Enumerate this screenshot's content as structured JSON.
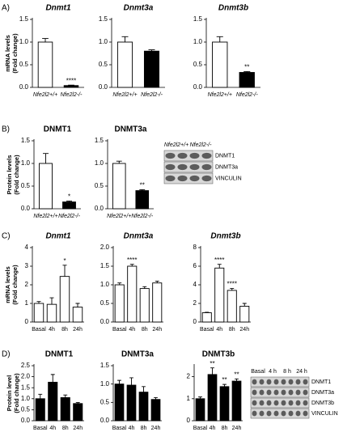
{
  "panel_labels": [
    "A)",
    "B)",
    "C)",
    "D)"
  ],
  "chart_data": [
    {
      "type": "bar",
      "title": "Dnmt1",
      "ylabel": [
        "mRNA levels",
        "(Fold change)"
      ],
      "categories": [
        "Nfe2l2+/+",
        "Nfe2l2-/-"
      ],
      "values": [
        1.0,
        0.04
      ],
      "errors": [
        0.08,
        0.01
      ],
      "significance": [
        null,
        "****"
      ],
      "colors": [
        "#ffffff",
        "#000000"
      ],
      "ylim": [
        0,
        1.5
      ],
      "yticks": [
        {
          "value": 0,
          "label": "0.0"
        },
        {
          "value": 0.5,
          "label": "0.5"
        },
        {
          "value": 1,
          "label": "1.0"
        },
        {
          "value": 1.5,
          "label": "1.5"
        }
      ]
    },
    {
      "type": "bar",
      "title": "Dnmt3a",
      "categories": [
        "Nfe2l2+/+",
        "Nfe2l2-/-"
      ],
      "values": [
        1.0,
        0.8
      ],
      "errors": [
        0.12,
        0.03
      ],
      "significance": [
        null,
        null
      ],
      "colors": [
        "#ffffff",
        "#000000"
      ],
      "ylim": [
        0,
        1.5
      ],
      "yticks": [
        {
          "value": 0,
          "label": "0.0"
        },
        {
          "value": 0.5,
          "label": "0.5"
        },
        {
          "value": 1,
          "label": "1.0"
        },
        {
          "value": 1.5,
          "label": "1.5"
        }
      ]
    },
    {
      "type": "bar",
      "title": "Dnmt3b",
      "categories": [
        "Nfe2l2+/+",
        "Nfe2l2-/-"
      ],
      "values": [
        1.0,
        0.33
      ],
      "errors": [
        0.12,
        0.02
      ],
      "significance": [
        null,
        "**"
      ],
      "colors": [
        "#ffffff",
        "#000000"
      ],
      "ylim": [
        0,
        1.5
      ],
      "yticks": [
        {
          "value": 0,
          "label": "0.0"
        },
        {
          "value": 0.5,
          "label": "0.5"
        },
        {
          "value": 1,
          "label": "1.0"
        },
        {
          "value": 1.5,
          "label": "1.5"
        }
      ]
    },
    {
      "type": "bar",
      "title": "DNMT1",
      "ylabel": [
        "Protein levels",
        "(Fold change)"
      ],
      "categories": [
        "Nfe2l2+/+",
        "Nfe2l2-/-"
      ],
      "values": [
        1.0,
        0.15
      ],
      "errors": [
        0.22,
        0.02
      ],
      "significance": [
        null,
        "*"
      ],
      "colors": [
        "#ffffff",
        "#000000"
      ],
      "ylim": [
        0,
        1.5
      ],
      "yticks": [
        {
          "value": 0,
          "label": "0.0"
        },
        {
          "value": 0.5,
          "label": "0.5"
        },
        {
          "value": 1,
          "label": "1.0"
        },
        {
          "value": 1.5,
          "label": "1.5"
        }
      ]
    },
    {
      "type": "bar",
      "title": "DNMT3a",
      "categories": [
        "Nfe2l2+/+",
        "Nfe2l2-/-"
      ],
      "values": [
        1.0,
        0.4
      ],
      "errors": [
        0.05,
        0.02
      ],
      "significance": [
        null,
        "**"
      ],
      "colors": [
        "#ffffff",
        "#000000"
      ],
      "ylim": [
        0,
        1.5
      ],
      "yticks": [
        {
          "value": 0,
          "label": "0.0"
        },
        {
          "value": 0.5,
          "label": "0.5"
        },
        {
          "value": 1,
          "label": "1.0"
        },
        {
          "value": 1.5,
          "label": "1.5"
        }
      ]
    },
    {
      "type": "bar",
      "title": "Dnmt1",
      "ylabel": [
        "mRNA levels",
        "(Fold change)"
      ],
      "categories": [
        "Basal",
        "4h",
        "8h",
        "24h"
      ],
      "values": [
        1.0,
        0.95,
        2.45,
        0.8
      ],
      "errors": [
        0.1,
        0.35,
        0.6,
        0.2
      ],
      "significance": [
        null,
        null,
        "*",
        null
      ],
      "color": "#ffffff",
      "ylim": [
        0,
        4
      ],
      "yticks": [
        0,
        1,
        2,
        3,
        4
      ]
    },
    {
      "type": "bar",
      "title": "Dnmt3a",
      "categories": [
        "Basal",
        "4h",
        "8h",
        "24h"
      ],
      "values": [
        1.0,
        1.5,
        0.9,
        1.05
      ],
      "errors": [
        0.05,
        0.05,
        0.05,
        0.05
      ],
      "significance": [
        null,
        "****",
        null,
        null
      ],
      "color": "#ffffff",
      "ylim": [
        0,
        2
      ],
      "yticks": [
        {
          "value": 0,
          "label": "0.0"
        },
        {
          "value": 0.5,
          "label": "0.5"
        },
        {
          "value": 1,
          "label": "1.0"
        },
        {
          "value": 1.5,
          "label": "1.5"
        },
        {
          "value": 2,
          "label": "2.0"
        }
      ]
    },
    {
      "type": "bar",
      "title": "Dnmt3b",
      "categories": [
        "Basal",
        "4h",
        "8h",
        "24h"
      ],
      "values": [
        1.0,
        5.8,
        3.4,
        1.7
      ],
      "errors": [
        0.05,
        0.4,
        0.2,
        0.3
      ],
      "significance": [
        null,
        "****",
        "****",
        null
      ],
      "color": "#ffffff",
      "ylim": [
        0,
        8
      ],
      "yticks": [
        0,
        2,
        4,
        6,
        8
      ]
    },
    {
      "type": "bar",
      "title": "DNMT1",
      "ylabel": [
        "Protein level",
        "(Fold change)"
      ],
      "categories": [
        "Basal",
        "4h",
        "8h",
        "24h"
      ],
      "values": [
        1.0,
        1.75,
        1.05,
        0.78
      ],
      "errors": [
        0.2,
        0.35,
        0.12,
        0.05
      ],
      "significance": [
        null,
        null,
        null,
        null
      ],
      "color": "#000000",
      "ylim": [
        0,
        2.5
      ],
      "yticks": [
        {
          "value": 0,
          "label": "0.0"
        },
        {
          "value": 0.5,
          "label": "0.5"
        },
        {
          "value": 1,
          "label": "1.0"
        },
        {
          "value": 1.5,
          "label": "1.5"
        },
        {
          "value": 2,
          "label": "2.0"
        },
        {
          "value": 2.5,
          "label": "2.5"
        }
      ]
    },
    {
      "type": "bar",
      "title": "DNMT3a",
      "categories": [
        "Basal",
        "4h",
        "8h",
        "24h"
      ],
      "values": [
        1.0,
        0.97,
        0.78,
        0.58
      ],
      "errors": [
        0.1,
        0.2,
        0.15,
        0.05
      ],
      "significance": [
        null,
        null,
        null,
        null
      ],
      "color": "#000000",
      "ylim": [
        0,
        1.5
      ],
      "yticks": [
        {
          "value": 0,
          "label": "0.0"
        },
        {
          "value": 0.5,
          "label": "0.5"
        },
        {
          "value": 1,
          "label": "1.0"
        },
        {
          "value": 1.5,
          "label": "1.5"
        }
      ]
    },
    {
      "type": "bar",
      "title": "DNMT3b",
      "categories": [
        "Basal",
        "4h",
        "8h",
        "24h"
      ],
      "values": [
        1.0,
        2.1,
        1.55,
        1.8
      ],
      "errors": [
        0.08,
        0.3,
        0.1,
        0.1
      ],
      "significance": [
        null,
        "**",
        "**",
        "**"
      ],
      "color": "#000000",
      "ylim": [
        0,
        2.5
      ],
      "yticks": [
        0,
        1,
        2
      ]
    }
  ],
  "blots": [
    {
      "columns": [
        "Nfe2l2+/+",
        "Nfe2l2-/-"
      ],
      "rows": [
        "DNMT1",
        "DNMT3a",
        "VINCULIN"
      ]
    },
    {
      "columns": [
        "Basal",
        "4 h",
        "8 h",
        "24 h"
      ],
      "rows": [
        "DNMT1",
        "DNMT3a",
        "DNMT3b",
        "VINCULIN"
      ]
    }
  ]
}
